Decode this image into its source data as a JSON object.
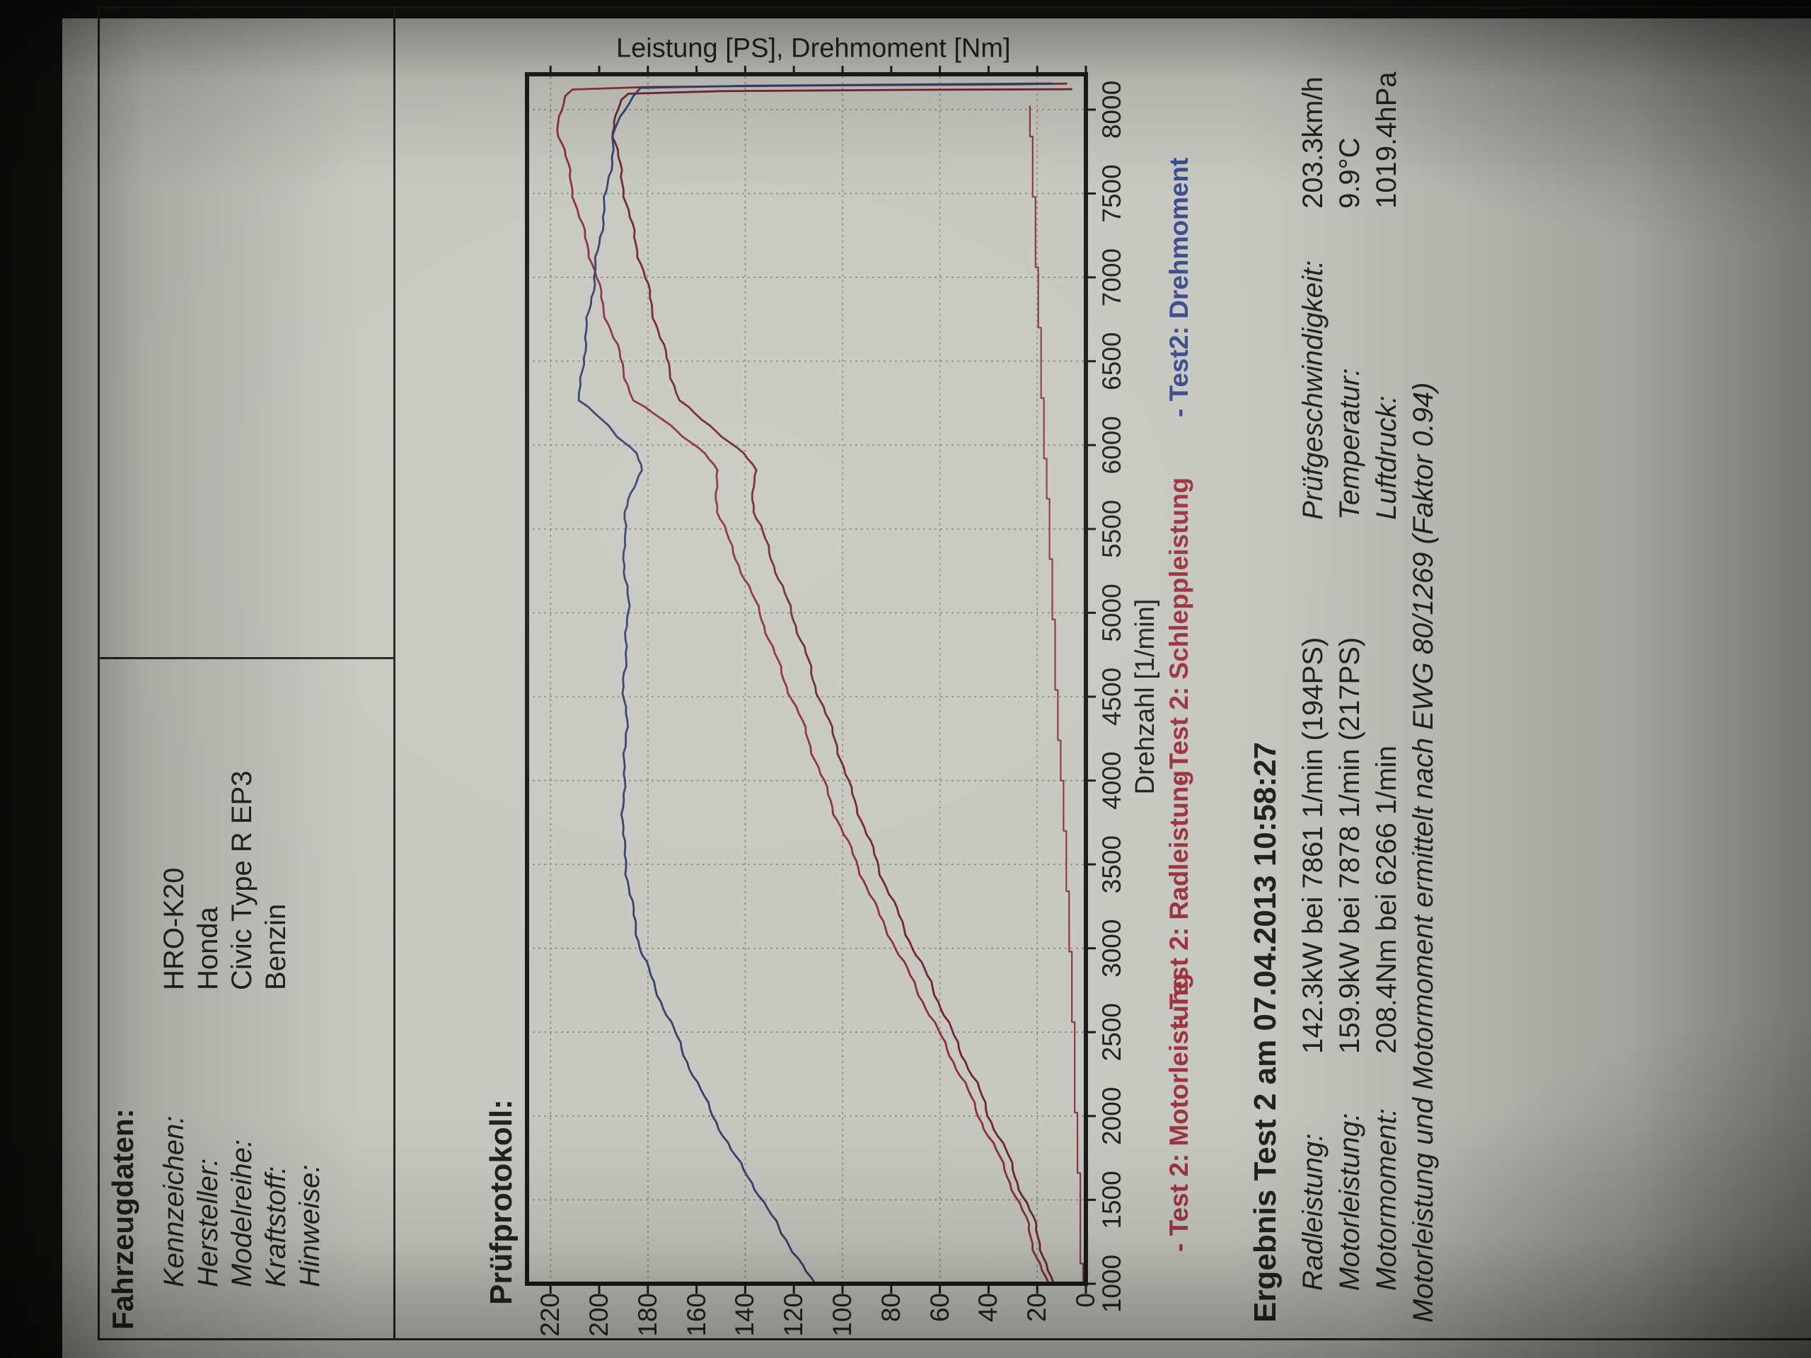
{
  "photo": {
    "background": "#141412",
    "paper_color": "#c7c8c1",
    "rotation": "page rotated 90 deg counter-clockwise"
  },
  "vehicle": {
    "header": "Fahrzeugdaten:",
    "rows": [
      {
        "label": "Kennzeichen:",
        "value": "HRO-K20"
      },
      {
        "label": "Hersteller:",
        "value": "Honda"
      },
      {
        "label": "Modelreihe:",
        "value": "Civic Type R EP3"
      },
      {
        "label": "Kraftstoff:",
        "value": "Benzin"
      },
      {
        "label": "Hinweise:",
        "value": ""
      }
    ]
  },
  "protocol_header": "Prüfprotokoll:",
  "results": {
    "header": "Ergebnis Test 2 am 07.04.2013 10:58:27",
    "rows": [
      {
        "label": "Radleistung:",
        "value": "142.3kW  bei 7861 1/min (194PS)",
        "label2": "Prüfgeschwindigkeit:",
        "value2": "203.3km/h"
      },
      {
        "label": "Motorleistung:",
        "value": "159.9kW  bei 7878 1/min (217PS)",
        "label2": "Temperatur:",
        "value2": "9.9°C"
      },
      {
        "label": "Motormoment:",
        "value": "208.4Nm bei 6266 1/min",
        "label2": "Luftdruck:",
        "value2": "1019.4hPa"
      }
    ],
    "note": "Motorleistung und Motormoment ermittelt nach EWG 80/1269 (Faktor 0.94)"
  },
  "chart_data": {
    "type": "line",
    "title": "Leistung [PS], Drehmoment [Nm]",
    "xlabel": "Drehzahl [1/min]",
    "ylabel": "",
    "x_range": [
      1000,
      8211
    ],
    "y_range": [
      0,
      229.6
    ],
    "x_ticks": [
      1000,
      1500,
      2000,
      2500,
      3000,
      3500,
      4000,
      4500,
      5000,
      5500,
      6000,
      6500,
      7000,
      7500,
      8000
    ],
    "y_ticks": [
      0,
      20,
      40,
      60,
      80,
      100,
      120,
      140,
      160,
      180,
      200,
      220
    ],
    "y_gridlines": [
      20,
      60,
      100,
      140,
      180,
      220
    ],
    "grid": "dashed",
    "grid_color": "#8b8678",
    "border_color": "#1b1b1a",
    "legend_position": "below x-axis, in one row",
    "series": [
      {
        "name": "- Test 2: Motorleistung",
        "unit": "PS",
        "color": "#8e2e39",
        "points": [
          [
            1000,
            16
          ],
          [
            1200,
            21
          ],
          [
            1400,
            25
          ],
          [
            1600,
            31
          ],
          [
            1800,
            37
          ],
          [
            2000,
            44
          ],
          [
            2200,
            50
          ],
          [
            2400,
            57
          ],
          [
            2600,
            64
          ],
          [
            2800,
            71
          ],
          [
            3000,
            78
          ],
          [
            3200,
            85
          ],
          [
            3400,
            91
          ],
          [
            3600,
            97
          ],
          [
            3800,
            103
          ],
          [
            4000,
            108
          ],
          [
            4200,
            113
          ],
          [
            4400,
            118
          ],
          [
            4600,
            124
          ],
          [
            4800,
            129
          ],
          [
            5000,
            134
          ],
          [
            5200,
            140
          ],
          [
            5400,
            146
          ],
          [
            5600,
            151
          ],
          [
            5750,
            152
          ],
          [
            5850,
            152
          ],
          [
            5950,
            156
          ],
          [
            6050,
            165
          ],
          [
            6150,
            174
          ],
          [
            6266,
            186
          ],
          [
            6400,
            189
          ],
          [
            6600,
            193
          ],
          [
            6800,
            198
          ],
          [
            7000,
            201
          ],
          [
            7200,
            205
          ],
          [
            7400,
            209
          ],
          [
            7600,
            212
          ],
          [
            7800,
            215
          ],
          [
            7878,
            217
          ],
          [
            8000,
            216
          ],
          [
            8080,
            214
          ],
          [
            8120,
            211
          ],
          [
            8135,
            180
          ],
          [
            8145,
            100
          ],
          [
            8150,
            30
          ],
          [
            8155,
            8
          ]
        ]
      },
      {
        "name": "- Test 2: Radleistung",
        "unit": "PS",
        "color": "#72242f",
        "points": [
          [
            1000,
            14
          ],
          [
            1200,
            18
          ],
          [
            1400,
            22
          ],
          [
            1600,
            28
          ],
          [
            1800,
            33
          ],
          [
            2000,
            40
          ],
          [
            2200,
            45
          ],
          [
            2400,
            52
          ],
          [
            2600,
            58
          ],
          [
            2800,
            64
          ],
          [
            3000,
            71
          ],
          [
            3200,
            77
          ],
          [
            3400,
            83
          ],
          [
            3600,
            88
          ],
          [
            3800,
            93
          ],
          [
            4000,
            98
          ],
          [
            4200,
            102
          ],
          [
            4400,
            107
          ],
          [
            4600,
            112
          ],
          [
            4800,
            116
          ],
          [
            5000,
            121
          ],
          [
            5200,
            126
          ],
          [
            5400,
            131
          ],
          [
            5600,
            136
          ],
          [
            5750,
            137
          ],
          [
            5850,
            136
          ],
          [
            5950,
            140
          ],
          [
            6050,
            149
          ],
          [
            6150,
            158
          ],
          [
            6266,
            167
          ],
          [
            6400,
            170
          ],
          [
            6600,
            174
          ],
          [
            6800,
            178
          ],
          [
            7000,
            181
          ],
          [
            7200,
            185
          ],
          [
            7400,
            188
          ],
          [
            7600,
            191
          ],
          [
            7800,
            193
          ],
          [
            7861,
            194
          ],
          [
            8000,
            193
          ],
          [
            8060,
            191
          ],
          [
            8095,
            188
          ],
          [
            8110,
            150
          ],
          [
            8118,
            70
          ],
          [
            8122,
            6
          ]
        ]
      },
      {
        "name": "- Test 2: Schleppleistung",
        "unit": "PS",
        "color": "#8a3a40",
        "stepped": true,
        "points": [
          [
            1000,
            1.5
          ],
          [
            1500,
            2.5
          ],
          [
            2000,
            4
          ],
          [
            2500,
            5
          ],
          [
            3000,
            6.5
          ],
          [
            3500,
            8
          ],
          [
            4000,
            10
          ],
          [
            4500,
            12
          ],
          [
            5000,
            13.5
          ],
          [
            5500,
            15
          ],
          [
            6000,
            17
          ],
          [
            6500,
            18.5
          ],
          [
            7000,
            20
          ],
          [
            7500,
            21.5
          ],
          [
            8000,
            23
          ],
          [
            8060,
            23.5
          ]
        ]
      },
      {
        "name": "- Test2: Drehmoment",
        "unit": "Nm",
        "color": "#35406d",
        "points": [
          [
            1000,
            112
          ],
          [
            1150,
            118
          ],
          [
            1300,
            125
          ],
          [
            1450,
            131
          ],
          [
            1600,
            137
          ],
          [
            1800,
            146
          ],
          [
            2000,
            153
          ],
          [
            2200,
            160
          ],
          [
            2400,
            166
          ],
          [
            2600,
            172
          ],
          [
            2800,
            178
          ],
          [
            3000,
            183
          ],
          [
            3200,
            186
          ],
          [
            3400,
            188
          ],
          [
            3600,
            190
          ],
          [
            3800,
            190
          ],
          [
            4000,
            190
          ],
          [
            4200,
            189
          ],
          [
            4400,
            189
          ],
          [
            4600,
            190
          ],
          [
            4800,
            189
          ],
          [
            5000,
            188
          ],
          [
            5200,
            189
          ],
          [
            5400,
            190
          ],
          [
            5600,
            189
          ],
          [
            5750,
            186
          ],
          [
            5850,
            183
          ],
          [
            5950,
            184
          ],
          [
            6050,
            192
          ],
          [
            6150,
            199
          ],
          [
            6266,
            208.4
          ],
          [
            6400,
            207
          ],
          [
            6600,
            206
          ],
          [
            6800,
            204
          ],
          [
            7000,
            202
          ],
          [
            7200,
            200
          ],
          [
            7400,
            198
          ],
          [
            7600,
            196
          ],
          [
            7800,
            194
          ],
          [
            7878,
            193.5
          ],
          [
            8000,
            190
          ],
          [
            8080,
            186
          ],
          [
            8130,
            183
          ],
          [
            8142,
            140
          ],
          [
            8150,
            70
          ],
          [
            8156,
            14
          ]
        ]
      }
    ],
    "annotations": {
      "peak_wheel_power": "194PS @ 7861 1/min",
      "peak_engine_power": "217PS @ 7878 1/min",
      "peak_torque": "208.4Nm @ 6266 1/min"
    }
  },
  "legend": {
    "items": [
      {
        "label": "- Test 2: Motorleistung",
        "color": "#9c3540"
      },
      {
        "label": "- Test 2: Radleistung",
        "color": "#9c3540"
      },
      {
        "label": "- Test 2: Schleppleistung",
        "color": "#9c3540"
      },
      {
        "label": "- Test2: Drehmoment",
        "color": "#3c4c8f"
      }
    ]
  }
}
